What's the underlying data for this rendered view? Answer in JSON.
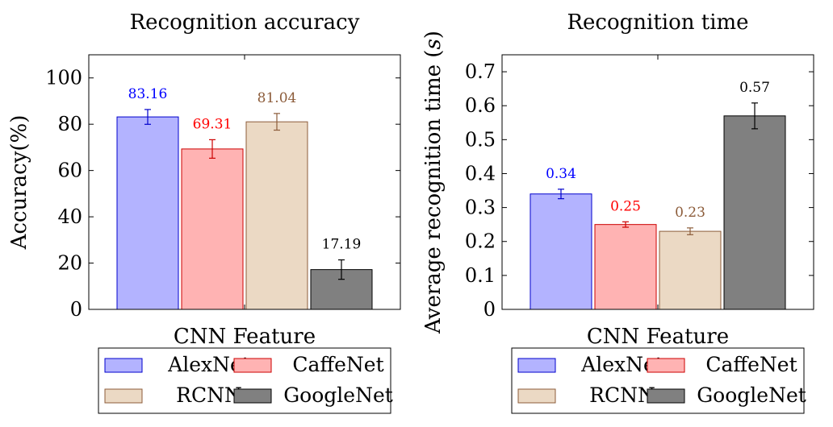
{
  "chart_data": [
    {
      "type": "bar",
      "title": "Recognition accuracy",
      "xlabel": "CNN Feature",
      "ylabel": "Accuracy(%)",
      "ylim": [
        0,
        110
      ],
      "yticks": [
        0,
        20,
        40,
        60,
        80,
        100
      ],
      "categories": [
        "CNN Feature"
      ],
      "series": [
        {
          "name": "AlexNet",
          "values": [
            83.16
          ],
          "error": [
            3.2
          ],
          "label": "83.16",
          "color": "#b3b3ff",
          "edge": "#0000cc",
          "label_color": "#0000ff"
        },
        {
          "name": "CaffeNet",
          "values": [
            69.31
          ],
          "error": [
            4.0
          ],
          "label": "69.31",
          "color": "#ffb3b3",
          "edge": "#cc0000",
          "label_color": "#ff0000"
        },
        {
          "name": "RCNN",
          "values": [
            81.04
          ],
          "error": [
            3.6
          ],
          "label": "81.04",
          "color": "#ebd9c4",
          "edge": "#8c5c3a",
          "label_color": "#8c5c3a"
        },
        {
          "name": "GoogleNet",
          "values": [
            17.19
          ],
          "error": [
            4.2
          ],
          "label": "17.19",
          "color": "#808080",
          "edge": "#000000",
          "label_color": "#000000"
        }
      ],
      "legend": "below"
    },
    {
      "type": "bar",
      "title": "Recognition time",
      "xlabel": "CNN Feature",
      "ylabel": "Average recognition time (",
      "ylabel_unit": "s",
      "ylabel_end": ")",
      "ylim": [
        0,
        0.75
      ],
      "yticks": [
        "0",
        "0.1",
        "0.2",
        "0.3",
        "0.4",
        "0.5",
        "0.6",
        "0.7"
      ],
      "categories": [
        "CNN Feature"
      ],
      "series": [
        {
          "name": "AlexNet",
          "values": [
            0.34
          ],
          "error": [
            0.014
          ],
          "label": "0.34",
          "color": "#b3b3ff",
          "edge": "#0000cc",
          "label_color": "#0000ff"
        },
        {
          "name": "CaffeNet",
          "values": [
            0.25
          ],
          "error": [
            0.008
          ],
          "label": "0.25",
          "color": "#ffb3b3",
          "edge": "#cc0000",
          "label_color": "#ff0000"
        },
        {
          "name": "RCNN",
          "values": [
            0.23
          ],
          "error": [
            0.01
          ],
          "label": "0.23",
          "color": "#ebd9c4",
          "edge": "#8c5c3a",
          "label_color": "#8c5c3a"
        },
        {
          "name": "GoogleNet",
          "values": [
            0.57
          ],
          "error": [
            0.038
          ],
          "label": "0.57",
          "color": "#808080",
          "edge": "#000000",
          "label_color": "#000000"
        }
      ],
      "legend": "below"
    }
  ]
}
